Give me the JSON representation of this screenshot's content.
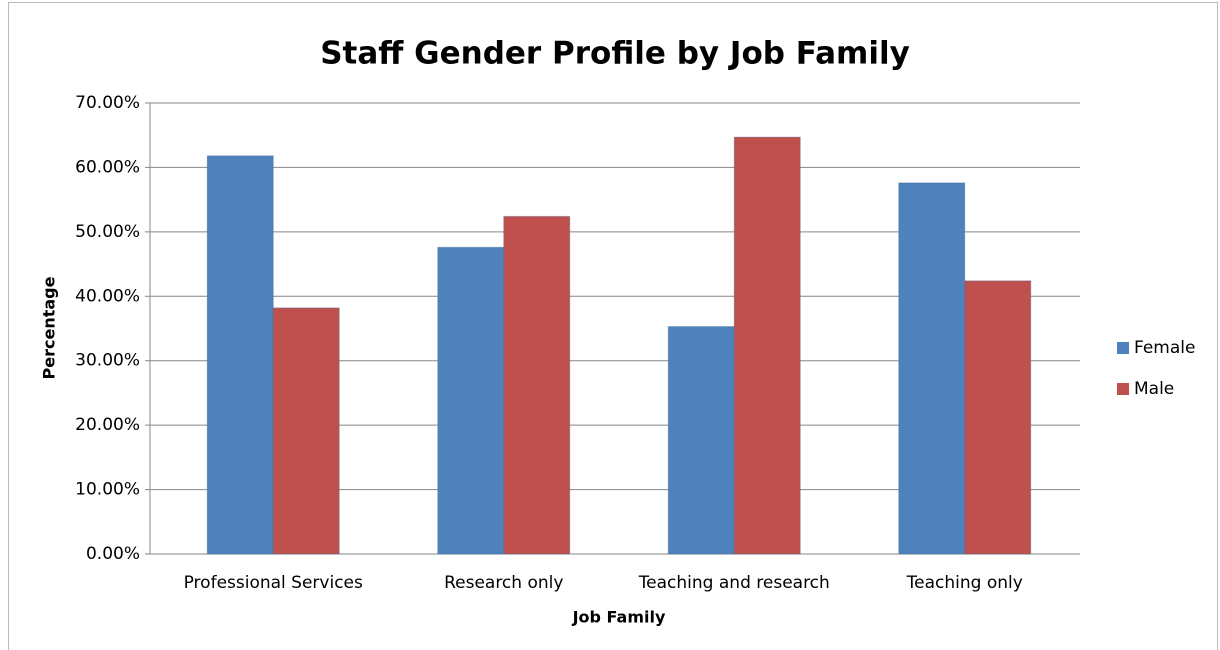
{
  "chart_data": {
    "type": "bar",
    "title": "Staff Gender Profile by Job Family",
    "x_label": "Job Family",
    "y_label": "Percentage",
    "categories": [
      "Professional Services",
      "Research only",
      "Teaching and research",
      "Teaching only"
    ],
    "series": [
      {
        "name": "Female",
        "color": "#4f81bd",
        "values": [
          61.8,
          47.6,
          35.3,
          57.6
        ]
      },
      {
        "name": "Male",
        "color": "#c0504d",
        "values": [
          38.2,
          52.4,
          64.7,
          42.4
        ]
      }
    ],
    "ylim": [
      0,
      70
    ],
    "yticks": [
      {
        "value": 0,
        "label": "0.00%"
      },
      {
        "value": 10,
        "label": "10.00%"
      },
      {
        "value": 20,
        "label": "20.00%"
      },
      {
        "value": 30,
        "label": "30.00%"
      },
      {
        "value": 40,
        "label": "40.00%"
      },
      {
        "value": 50,
        "label": "50.00%"
      },
      {
        "value": 60,
        "label": "60.00%"
      },
      {
        "value": 70,
        "label": "70.00%"
      }
    ],
    "grid": true,
    "legend": "right"
  }
}
